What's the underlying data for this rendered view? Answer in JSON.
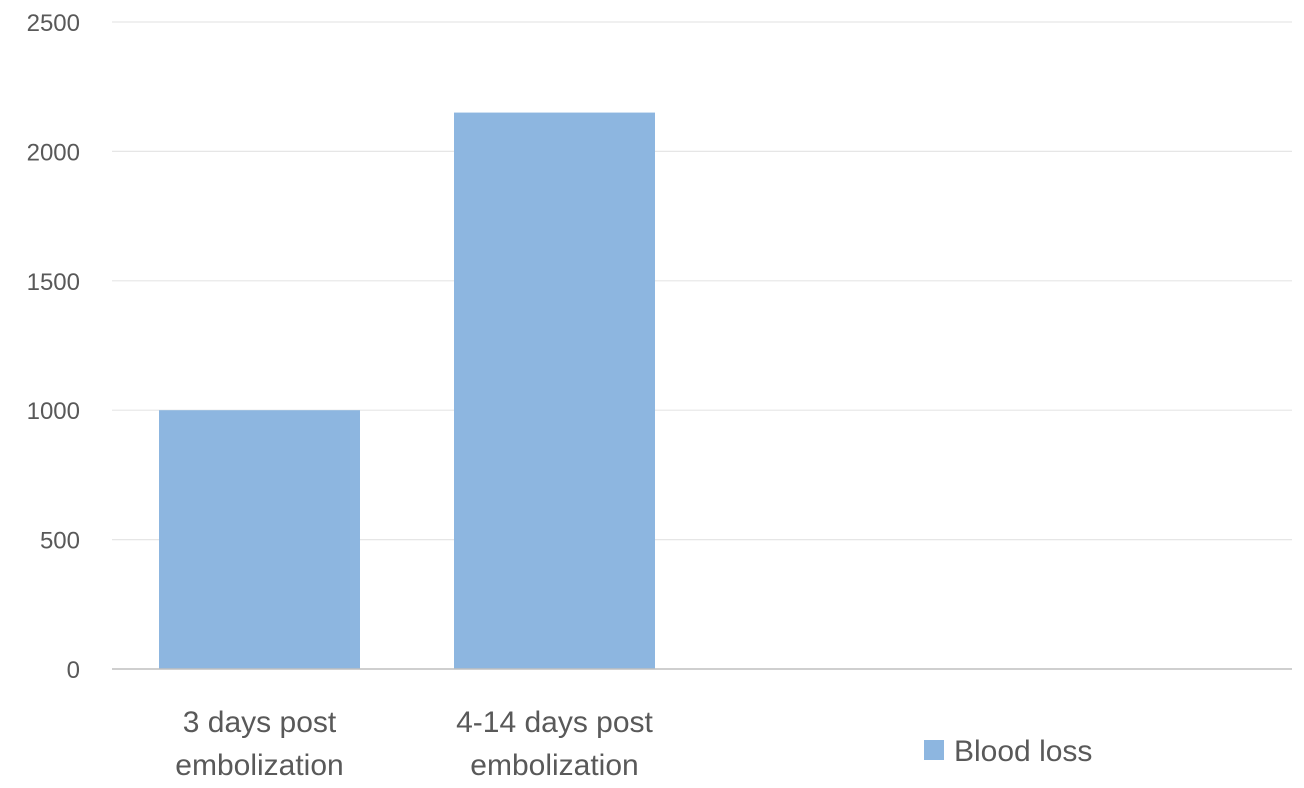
{
  "chart_data": {
    "type": "bar",
    "categories": [
      [
        "3 days post",
        "embolization"
      ],
      [
        "4-14 days post",
        "embolization"
      ],
      [
        "",
        ""
      ]
    ],
    "series": [
      {
        "name": "Blood loss",
        "values": [
          1000,
          2150,
          null
        ],
        "color": "#8db6e0"
      }
    ],
    "ylim": [
      0,
      2500
    ],
    "yticks": [
      "0",
      "500",
      "1000",
      "1500",
      "2000",
      "2500"
    ],
    "grid": true,
    "legend": "bottom-right"
  }
}
